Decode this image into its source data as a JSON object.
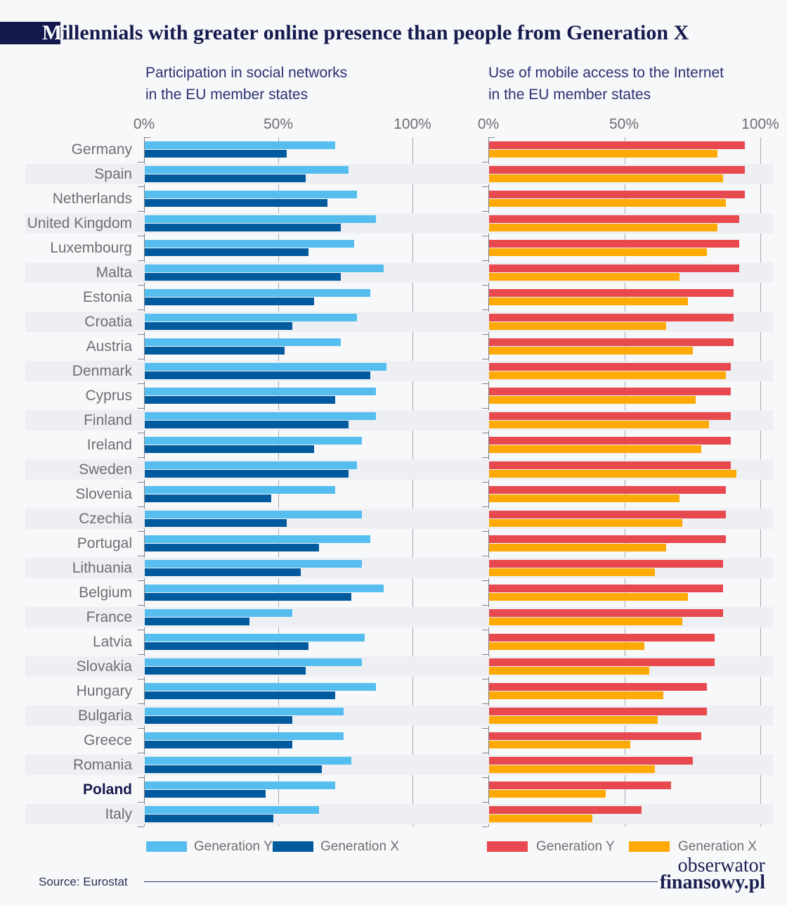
{
  "title": {
    "highlight": "M",
    "rest": "illennials with greater online presence than people from Generation X"
  },
  "highlight_country": "Poland",
  "colors": {
    "background": "#f7f8fa",
    "row_stripe": "#edeff3",
    "title_navy": "#141a4d",
    "subtitle_navy": "#2b3271",
    "label_gray": "#6d6e71",
    "gen_y_blue": "#56beef",
    "gen_x_blue": "#005a9e",
    "gen_y_red": "#e8494e",
    "gen_x_orange": "#ffa905"
  },
  "chart_data": [
    {
      "type": "bar",
      "orientation": "horizontal",
      "title_line1": "Participation in social networks",
      "title_line2": "in the EU member states",
      "xlim": [
        0,
        100
      ],
      "x_tick_labels": [
        "0%",
        "50%",
        "100%"
      ],
      "grid": true,
      "legend_position": "bottom",
      "categories": [
        "Germany",
        "Spain",
        "Netherlands",
        "United Kingdom",
        "Luxembourg",
        "Malta",
        "Estonia",
        "Croatia",
        "Austria",
        "Denmark",
        "Cyprus",
        "Finland",
        "Ireland",
        "Sweden",
        "Slovenia",
        "Czechia",
        "Portugal",
        "Lithuania",
        "Belgium",
        "France",
        "Latvia",
        "Slovakia",
        "Hungary",
        "Bulgaria",
        "Greece",
        "Romania",
        "Poland",
        "Italy"
      ],
      "series": [
        {
          "name": "Generation Y",
          "color": "#56beef",
          "values": [
            71,
            76,
            79,
            86,
            78,
            89,
            84,
            79,
            73,
            90,
            86,
            86,
            81,
            79,
            71,
            81,
            84,
            81,
            89,
            55,
            82,
            81,
            86,
            74,
            74,
            77,
            71,
            65
          ]
        },
        {
          "name": "Generation X",
          "color": "#005a9e",
          "values": [
            53,
            60,
            68,
            73,
            61,
            73,
            63,
            55,
            52,
            84,
            71,
            76,
            63,
            76,
            47,
            53,
            65,
            58,
            77,
            39,
            61,
            60,
            71,
            55,
            55,
            66,
            45,
            48
          ]
        }
      ]
    },
    {
      "type": "bar",
      "orientation": "horizontal",
      "title_line1": "Use of mobile access to the Internet",
      "title_line2": "in the EU member states",
      "xlim": [
        0,
        100
      ],
      "x_tick_labels": [
        "0%",
        "50%",
        "100%"
      ],
      "grid": true,
      "legend_position": "bottom",
      "categories": [
        "Germany",
        "Spain",
        "Netherlands",
        "United Kingdom",
        "Luxembourg",
        "Malta",
        "Estonia",
        "Croatia",
        "Austria",
        "Denmark",
        "Cyprus",
        "Finland",
        "Ireland",
        "Sweden",
        "Slovenia",
        "Czechia",
        "Portugal",
        "Lithuania",
        "Belgium",
        "France",
        "Latvia",
        "Slovakia",
        "Hungary",
        "Bulgaria",
        "Greece",
        "Romania",
        "Poland",
        "Italy"
      ],
      "series": [
        {
          "name": "Generation Y",
          "color": "#e8494e",
          "values": [
            94,
            94,
            94,
            92,
            92,
            92,
            90,
            90,
            90,
            89,
            89,
            89,
            89,
            89,
            87,
            87,
            87,
            86,
            86,
            86,
            83,
            83,
            80,
            80,
            78,
            75,
            67,
            56
          ]
        },
        {
          "name": "Generation X",
          "color": "#ffa905",
          "values": [
            84,
            86,
            87,
            84,
            80,
            70,
            73,
            65,
            75,
            87,
            76,
            81,
            78,
            91,
            70,
            71,
            65,
            61,
            73,
            71,
            57,
            59,
            64,
            62,
            52,
            61,
            43,
            38
          ]
        }
      ]
    }
  ],
  "footer": {
    "source": "Source: Eurostat",
    "logo_line1": "obserwator",
    "logo_line2": "finansowy.pl"
  }
}
